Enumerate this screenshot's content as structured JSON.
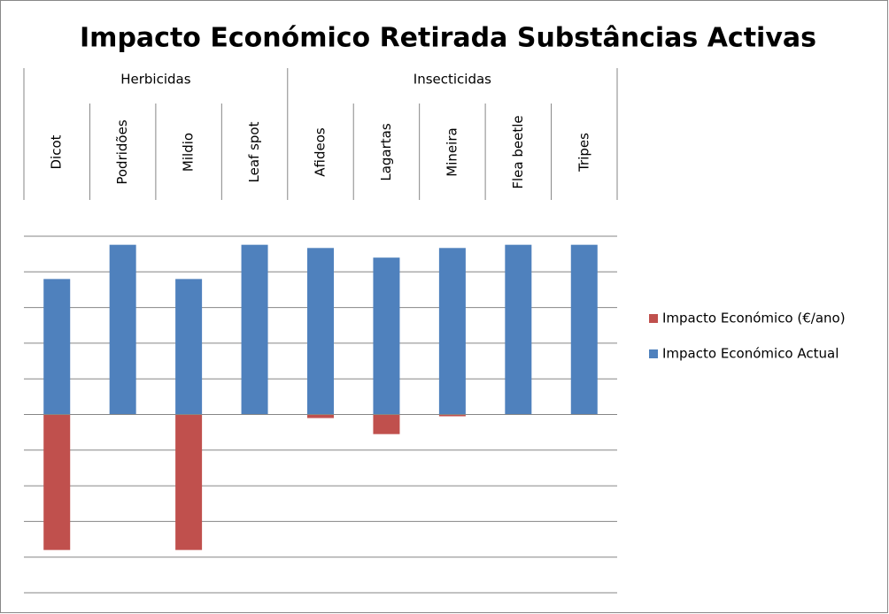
{
  "chart_data": {
    "type": "bar",
    "title": "Impacto Económico Retirada Substâncias Activas",
    "groups": [
      {
        "label": "Herbicidas",
        "categories": [
          "Dicot",
          "Podridões",
          "Mildio",
          "Leaf spot"
        ]
      },
      {
        "label": "Insecticidas",
        "categories": [
          "Afideos",
          "Lagartas",
          "Mineira",
          "Flea beetle",
          "Tripes"
        ]
      }
    ],
    "series": [
      {
        "name": "Impacto Económico (€/ano)",
        "color": "#c0504d",
        "values": [
          -3.8,
          0,
          -3.8,
          0,
          -0.1,
          -0.55,
          -0.05,
          0,
          0
        ]
      },
      {
        "name": "Impacto Económico Actual",
        "color": "#4f81bd",
        "values": [
          3.8,
          4.76,
          3.8,
          4.76,
          4.67,
          4.4,
          4.67,
          4.76,
          4.76
        ]
      }
    ],
    "ylim": [
      -5,
      5
    ],
    "yticks": [
      -5,
      -4,
      -3,
      -2,
      -1,
      0,
      1,
      2,
      3,
      4,
      5
    ],
    "grid": true,
    "legend": "right"
  }
}
